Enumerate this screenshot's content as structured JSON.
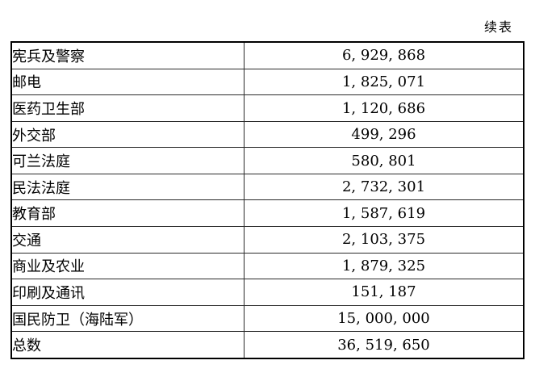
{
  "page": {
    "continued_label": "续表"
  },
  "colors": {
    "background": "#ffffff",
    "border_outer": "#000000",
    "border_inner": "#2b2b2b",
    "text": "#000000"
  },
  "table": {
    "columns": [
      "category",
      "amount"
    ],
    "rows": [
      {
        "label": "宪兵及警察",
        "value": "6, 929, 868"
      },
      {
        "label": "邮电",
        "value": "1, 825, 071"
      },
      {
        "label": "医药卫生部",
        "value": "1, 120, 686"
      },
      {
        "label": "外交部",
        "value": "499, 296"
      },
      {
        "label": "可兰法庭",
        "value": "580, 801"
      },
      {
        "label": "民法法庭",
        "value": "2, 732, 301"
      },
      {
        "label": "教育部",
        "value": "1, 587, 619"
      },
      {
        "label": "交通",
        "value": "2, 103, 375"
      },
      {
        "label": "商业及农业",
        "value": "1, 879, 325"
      },
      {
        "label": "印刷及通讯",
        "value": "151, 187"
      },
      {
        "label": "国民防卫（海陆军）",
        "value": "15, 000, 000"
      },
      {
        "label": "总数",
        "value": "36, 519, 650"
      }
    ]
  }
}
